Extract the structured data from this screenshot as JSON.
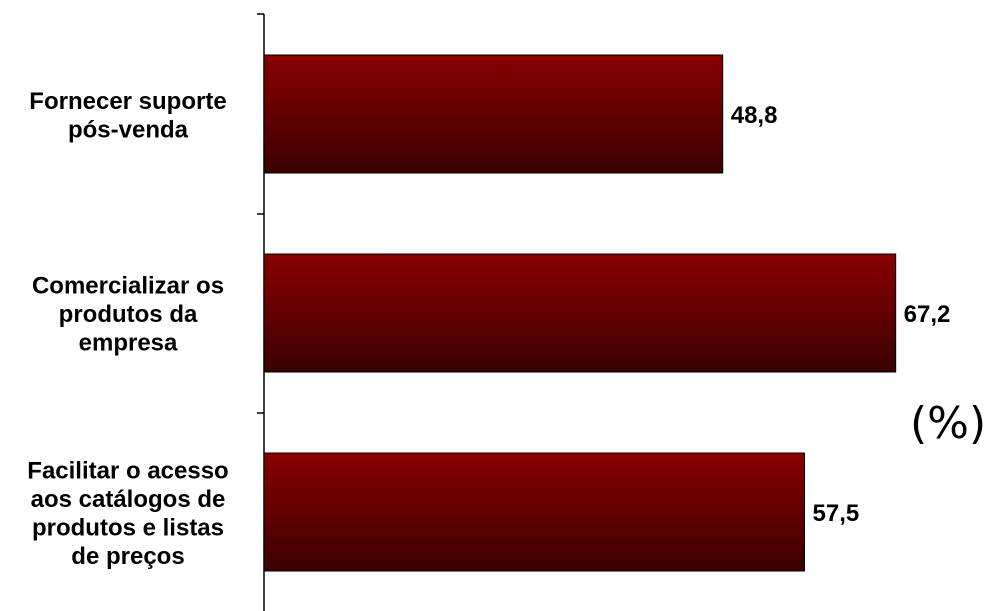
{
  "chart_data": {
    "type": "bar",
    "orientation": "horizontal",
    "categories": [
      "Fornecer suporte pós-venda",
      "Comercializar os produtos da empresa",
      "Facilitar o acesso aos catálogos de produtos e listas de preços"
    ],
    "category_lines": [
      [
        "Fornecer suporte",
        "pós-venda"
      ],
      [
        "Comercializar os",
        "produtos da",
        "empresa"
      ],
      [
        "Facilitar o acesso",
        "aos catálogos de",
        "produtos e listas",
        "de preços"
      ]
    ],
    "values": [
      48.8,
      67.2,
      57.5
    ],
    "value_labels": [
      "48,8",
      "67,2",
      "57,5"
    ],
    "unit_label": "(%)",
    "xlim": [
      0,
      100
    ],
    "grid": false,
    "bar_colors": {
      "top": "#8a0000",
      "bottom": "#3a0000",
      "stroke": "#000000"
    }
  }
}
